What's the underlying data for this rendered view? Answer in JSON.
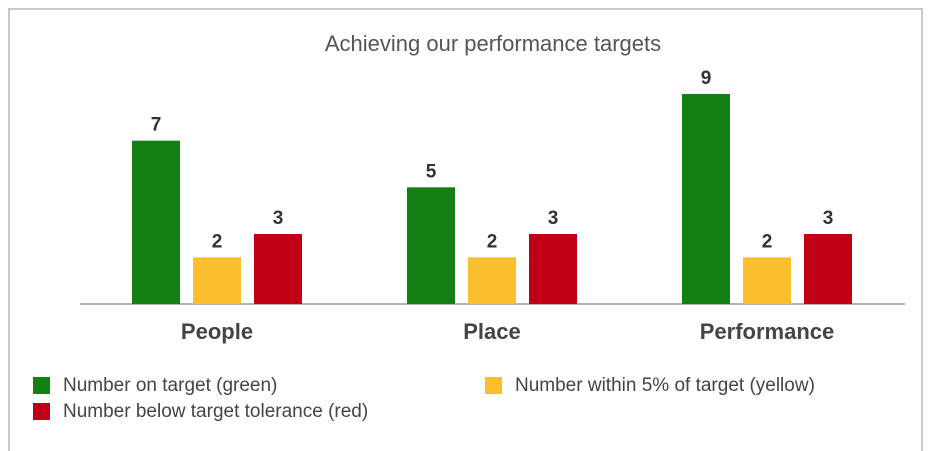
{
  "chart_data": {
    "type": "bar",
    "title": "Achieving our performance targets",
    "categories": [
      "People",
      "Place",
      "Performance"
    ],
    "series": [
      {
        "name": "Number on target (green)",
        "color": "#128012",
        "values": [
          7,
          5,
          9
        ]
      },
      {
        "name": "Number within 5% of target (yellow)",
        "color": "#fbbf2e",
        "values": [
          2,
          2,
          2
        ]
      },
      {
        "name": "Number below target tolerance (red)",
        "color": "#c00015",
        "values": [
          3,
          3,
          3
        ]
      }
    ]
  }
}
